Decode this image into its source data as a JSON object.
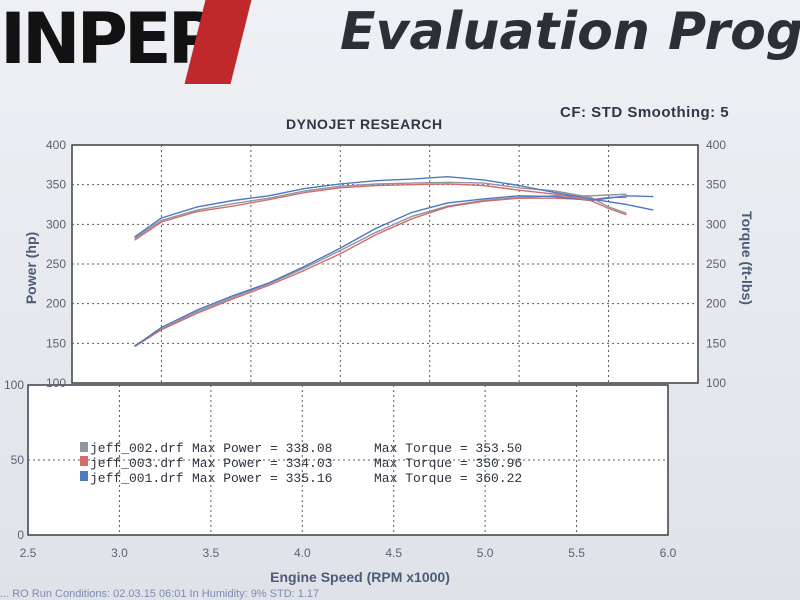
{
  "header": {
    "brand": "INPEP",
    "title": "Evaluation Progr",
    "cf_label": "CF: STD  Smoothing: 5",
    "dyno_label": "DYNOJET RESEARCH"
  },
  "legend": [
    {
      "file": "jeff_002.drf",
      "power_label": "Max Power = 338.08",
      "torque_label": "Max Torque = 353.50",
      "color": "#8e969f"
    },
    {
      "file": "jeff_003.drf",
      "power_label": "Max Power = 334.03",
      "torque_label": "Max Torque = 350.96",
      "color": "#d46c6c"
    },
    {
      "file": "jeff_001.drf",
      "power_label": "Max Power = 335.16",
      "torque_label": "Max Torque = 360.22",
      "color": "#4f78c2"
    }
  ],
  "footer": "... RO  Run Conditions: 02.03.15  06:01  In  Humidity: 9%  STD: 1.17",
  "chart_data": {
    "type": "line",
    "xlabel": "Engine Speed (RPM x1000)",
    "xlim": [
      2.5,
      6.0
    ],
    "x_ticks": [
      "2.5",
      "3.0",
      "3.5",
      "4.0",
      "4.5",
      "5.0",
      "5.5",
      "6.0"
    ],
    "upper": {
      "ylabel_left": "Power (hp)",
      "ylabel_right": "Torque (ft-lbs)",
      "ylim": [
        100,
        400
      ],
      "left_ticks": [
        "100",
        "150",
        "200",
        "250",
        "300",
        "350",
        "400"
      ],
      "right_ticks": [
        "100",
        "150",
        "200",
        "250",
        "300",
        "350",
        "400"
      ],
      "grid": true
    },
    "lower": {
      "ylim": [
        0,
        100
      ],
      "left_ticks": [
        "0",
        "50",
        "100"
      ],
      "grid": true
    },
    "series": [
      {
        "name": "jeff_002.drf Power",
        "color": "#8e969f",
        "x": [
          2.85,
          3.0,
          3.2,
          3.4,
          3.6,
          3.8,
          4.0,
          4.2,
          4.4,
          4.6,
          4.8,
          5.0,
          5.2,
          5.4,
          5.5,
          5.6
        ],
        "y": [
          147,
          168,
          190,
          208,
          225,
          245,
          267,
          290,
          310,
          323,
          330,
          334,
          336,
          336,
          337,
          338
        ]
      },
      {
        "name": "jeff_003.drf Power",
        "color": "#d46c6c",
        "x": [
          2.85,
          3.0,
          3.2,
          3.4,
          3.6,
          3.8,
          4.0,
          4.2,
          4.4,
          4.6,
          4.8,
          5.0,
          5.2,
          5.4,
          5.5,
          5.6
        ],
        "y": [
          146,
          167,
          188,
          206,
          223,
          242,
          263,
          287,
          307,
          322,
          329,
          333,
          333,
          331,
          334,
          334
        ]
      },
      {
        "name": "jeff_001.drf Power",
        "color": "#4f78c2",
        "x": [
          2.85,
          3.0,
          3.2,
          3.4,
          3.6,
          3.8,
          4.0,
          4.2,
          4.4,
          4.6,
          4.8,
          5.0,
          5.2,
          5.4,
          5.6,
          5.75
        ],
        "y": [
          146,
          170,
          192,
          210,
          226,
          247,
          270,
          295,
          315,
          327,
          332,
          336,
          335,
          330,
          336,
          335
        ]
      },
      {
        "name": "jeff_002.drf Torque",
        "color": "#8e969f",
        "x": [
          2.85,
          3.0,
          3.2,
          3.4,
          3.6,
          3.8,
          4.0,
          4.2,
          4.4,
          4.6,
          4.8,
          5.0,
          5.2,
          5.4,
          5.5,
          5.6
        ],
        "y": [
          282,
          305,
          318,
          326,
          333,
          342,
          348,
          351,
          352,
          353,
          352,
          346,
          342,
          334,
          322,
          314
        ]
      },
      {
        "name": "jeff_003.drf Torque",
        "color": "#d46c6c",
        "x": [
          2.85,
          3.0,
          3.2,
          3.4,
          3.6,
          3.8,
          4.0,
          4.2,
          4.4,
          4.6,
          4.8,
          5.0,
          5.2,
          5.4,
          5.5,
          5.6
        ],
        "y": [
          280,
          303,
          316,
          323,
          331,
          340,
          346,
          349,
          350,
          351,
          349,
          343,
          338,
          330,
          320,
          312
        ]
      },
      {
        "name": "jeff_001.drf Torque",
        "color": "#4f78c2",
        "x": [
          2.85,
          3.0,
          3.2,
          3.4,
          3.6,
          3.8,
          4.0,
          4.2,
          4.4,
          4.6,
          4.8,
          5.0,
          5.2,
          5.4,
          5.6,
          5.75
        ],
        "y": [
          284,
          308,
          322,
          330,
          336,
          345,
          351,
          355,
          357,
          360,
          356,
          349,
          340,
          332,
          325,
          318
        ]
      }
    ]
  }
}
